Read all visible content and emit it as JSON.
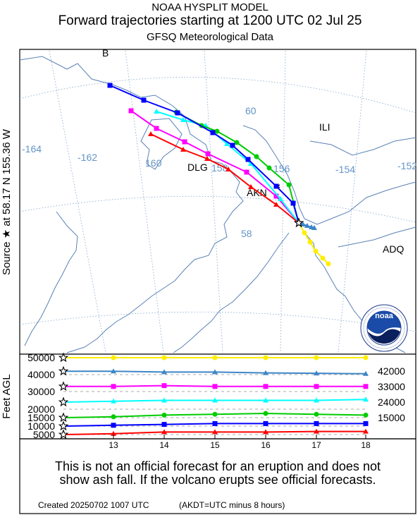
{
  "header": {
    "line1": "NOAA HYSPLIT MODEL",
    "line2": "Forward trajectories starting at 1200 UTC 02 Jul 25",
    "line3": "GFSQ Meteorological Data"
  },
  "source_label": {
    "prefix": "Source",
    "at": "at",
    "lat": "58.17 N",
    "lon": "155.36 W"
  },
  "map": {
    "corner_label": "B",
    "lon_labels": [
      "-164",
      "-162",
      "160",
      "158",
      "156",
      "-154",
      "-152"
    ],
    "lat_labels": [
      "60",
      "58"
    ],
    "stations": [
      "DLG",
      "AKN",
      "ILI",
      "ADQ"
    ],
    "logo_text": "noaa",
    "logo_ring_text": "NATIONAL OCEANIC AND ATMOSPHERIC ADMINISTRATION · U.S. DEPARTMENT OF COMMERCE"
  },
  "height_panel": {
    "ylabel": "Feet AGL",
    "yticks": [
      "50000",
      "40000",
      "30000",
      "20000",
      "15000",
      "10000",
      "5000"
    ],
    "xticks": [
      "13",
      "14",
      "15",
      "16",
      "17",
      "18"
    ],
    "right_labels": [
      "42000",
      "33000",
      "24000",
      "15000"
    ]
  },
  "chart_data": {
    "type": "line",
    "x": [
      12.5,
      13,
      14,
      15,
      16,
      17,
      18
    ],
    "series": [
      {
        "color": "#ffee00",
        "marker": "circle",
        "values": [
          50000,
          50000,
          50000,
          50000,
          50000,
          50000,
          50000
        ]
      },
      {
        "color": "#3d86c6",
        "marker": "triangle",
        "values": [
          42000,
          42000,
          41500,
          41500,
          41000,
          40800,
          40500
        ]
      },
      {
        "color": "#ff00ff",
        "marker": "square",
        "values": [
          33000,
          33000,
          33500,
          33000,
          33000,
          33000,
          33000
        ]
      },
      {
        "color": "#00ffff",
        "marker": "triangle",
        "values": [
          24000,
          24500,
          25000,
          25000,
          25000,
          25000,
          25500
        ]
      },
      {
        "color": "#00cc00",
        "marker": "circle",
        "values": [
          15000,
          15500,
          16500,
          17000,
          17500,
          17000,
          16500
        ]
      },
      {
        "color": "#0000ff",
        "marker": "square",
        "values": [
          10000,
          10500,
          11000,
          11500,
          11500,
          11500,
          11500
        ]
      },
      {
        "color": "#ff0000",
        "marker": "triangle",
        "values": [
          5000,
          5500,
          6500,
          6500,
          6500,
          6800,
          6800
        ]
      }
    ]
  },
  "footer": {
    "disclaimer_1": "This is not an official forecast for an eruption and does not",
    "disclaimer_2": "show ash fall. If the volcano erupts see official forecasts.",
    "created": "Created 20250702 1007 UTC",
    "tz_note": "(AKDT=UTC minus 8 hours)"
  },
  "colors": {
    "yellow": "#ffee00",
    "steel": "#3d86c6",
    "magenta": "#ff00ff",
    "cyan": "#00ffff",
    "green": "#00cc00",
    "blue": "#0000ff",
    "red": "#ff0000",
    "coast": "#5a82b5",
    "grid": "#7fa4cc"
  }
}
